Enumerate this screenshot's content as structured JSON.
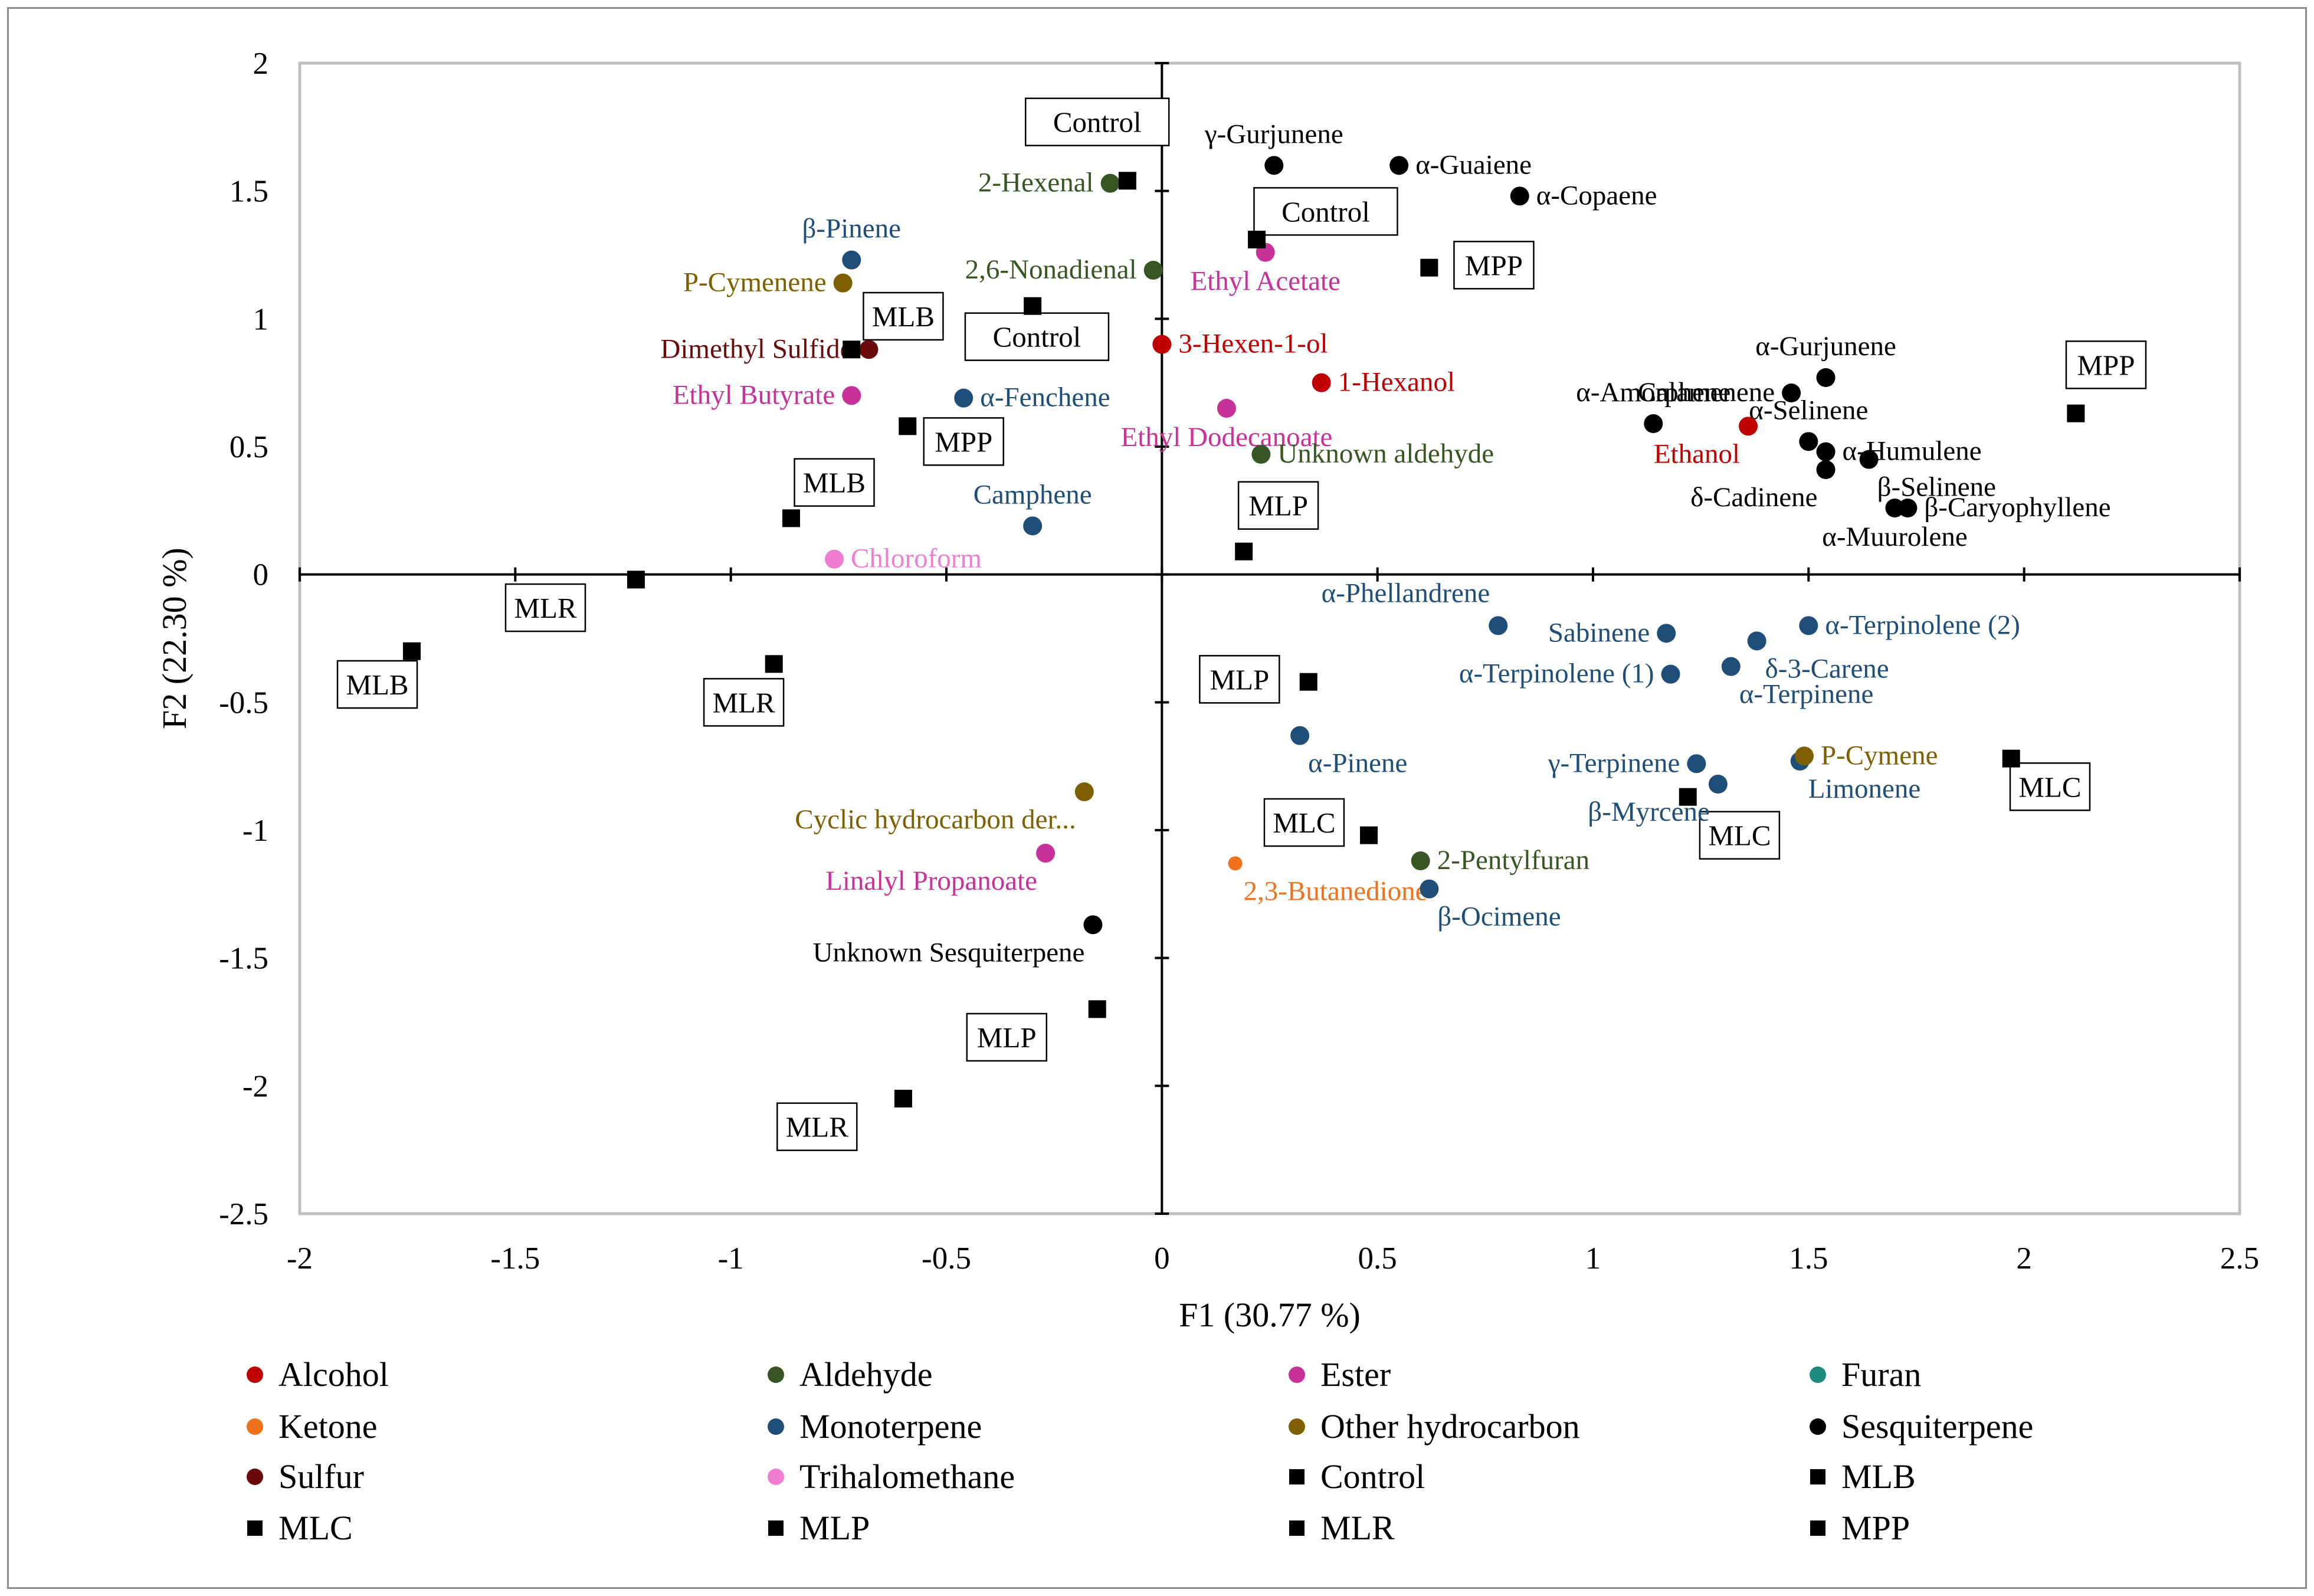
{
  "chart_data": {
    "type": "scatter",
    "xlabel": "F1 (30.77 %)",
    "ylabel": "F2 (22.30 %)",
    "xlim": [
      -2,
      2.5
    ],
    "ylim": [
      -2.5,
      2
    ],
    "xticks": [
      -2,
      -1.5,
      -1,
      -0.5,
      0,
      0.5,
      1,
      1.5,
      2,
      2.5
    ],
    "yticks": [
      -2.5,
      -2,
      -1.5,
      -1,
      -0.5,
      0,
      0.5,
      1,
      1.5,
      2
    ],
    "xtick_labels": [
      "-2",
      "-1.5",
      "-1",
      "-0.5",
      "0",
      "0.5",
      "1",
      "1.5",
      "2",
      "2.5"
    ],
    "ytick_labels": [
      "-2.5",
      "-2",
      "-1.5",
      "-1",
      "-0.5",
      "0",
      "0.5",
      "1",
      "1.5",
      "2"
    ],
    "grid": false,
    "legend_position": "bottom",
    "categories": [
      {
        "name": "Alcohol",
        "color": "#c00000",
        "marker": "circle"
      },
      {
        "name": "Aldehyde",
        "color": "#375623",
        "marker": "circle"
      },
      {
        "name": "Ester",
        "color": "#c8309a",
        "marker": "circle"
      },
      {
        "name": "Furan",
        "color": "#1b8a80",
        "marker": "circle"
      },
      {
        "name": "Ketone",
        "color": "#f2711c",
        "marker": "circle"
      },
      {
        "name": "Monoterpene",
        "color": "#1f4e79",
        "marker": "circle"
      },
      {
        "name": "Other hydrocarbon",
        "color": "#7f6000",
        "marker": "circle"
      },
      {
        "name": "Sesquiterpene",
        "color": "#000000",
        "marker": "circle"
      },
      {
        "name": "Sulfur",
        "color": "#6b0a0a",
        "marker": "circle"
      },
      {
        "name": "Trihalomethane",
        "color": "#f07ed0",
        "marker": "circle"
      },
      {
        "name": "Control",
        "color": "#000000",
        "marker": "square"
      },
      {
        "name": "MLB",
        "color": "#000000",
        "marker": "square"
      },
      {
        "name": "MLC",
        "color": "#000000",
        "marker": "square"
      },
      {
        "name": "MLP",
        "color": "#000000",
        "marker": "square"
      },
      {
        "name": "MLR",
        "color": "#000000",
        "marker": "square"
      },
      {
        "name": "MPP",
        "color": "#000000",
        "marker": "square"
      }
    ],
    "points": [
      {
        "label": "γ-Gurjunene",
        "cat": "Sesquiterpene",
        "x": 0.26,
        "y": 1.6,
        "lp": "a"
      },
      {
        "label": "α-Guaiene",
        "cat": "Sesquiterpene",
        "x": 0.55,
        "y": 1.6,
        "lp": "r"
      },
      {
        "label": "α-Copaene",
        "cat": "Sesquiterpene",
        "x": 0.83,
        "y": 1.48,
        "lp": "r"
      },
      {
        "label": "2-Hexenal",
        "cat": "Aldehyde",
        "x": -0.12,
        "y": 1.53,
        "lp": "l"
      },
      {
        "label": "β-Pinene",
        "cat": "Monoterpene",
        "x": -0.72,
        "y": 1.23,
        "lp": "a"
      },
      {
        "label": "P-Cymenene",
        "cat": "Other hydrocarbon",
        "x": -0.74,
        "y": 1.14,
        "lp": "l"
      },
      {
        "label": "2,6-Nonadienal",
        "cat": "Aldehyde",
        "x": -0.02,
        "y": 1.19,
        "lp": "l"
      },
      {
        "label": "Ethyl Acetate",
        "cat": "Ester",
        "x": 0.24,
        "y": 1.26,
        "lp": "b"
      },
      {
        "label": "Dimethyl Sulfide",
        "cat": "Sulfur",
        "x": -0.68,
        "y": 0.88,
        "lp": "l"
      },
      {
        "label": "3-Hexen-1-ol",
        "cat": "Alcohol",
        "x": 0.0,
        "y": 0.9,
        "lp": "r"
      },
      {
        "label": "1-Hexanol",
        "cat": "Alcohol",
        "x": 0.37,
        "y": 0.75,
        "lp": "r"
      },
      {
        "label": "Ethyl Butyrate",
        "cat": "Ester",
        "x": -0.72,
        "y": 0.7,
        "lp": "l"
      },
      {
        "label": "α-Fenchene",
        "cat": "Monoterpene",
        "x": -0.46,
        "y": 0.69,
        "lp": "r"
      },
      {
        "label": "Ethyl Dodecanoate",
        "cat": "Ester",
        "x": 0.15,
        "y": 0.65,
        "lp": "b"
      },
      {
        "label": "Unknown aldehyde",
        "cat": "Aldehyde",
        "x": 0.23,
        "y": 0.47,
        "lp": "r"
      },
      {
        "label": "Camphene",
        "cat": "Monoterpene",
        "x": -0.3,
        "y": 0.19,
        "lp": "a"
      },
      {
        "label": "Chloroform",
        "cat": "Trihalomethane",
        "x": -0.76,
        "y": 0.06,
        "lp": "r"
      },
      {
        "label": "α-Amorphene",
        "cat": "Sesquiterpene",
        "x": 1.14,
        "y": 0.59,
        "lp": "a"
      },
      {
        "label": "Calamenene",
        "cat": "Sesquiterpene",
        "x": 1.46,
        "y": 0.71,
        "lp": "l"
      },
      {
        "label": "α-Gurjunene",
        "cat": "Sesquiterpene",
        "x": 1.54,
        "y": 0.77,
        "lp": "a"
      },
      {
        "label": "α-Selinene",
        "cat": "Sesquiterpene",
        "x": 1.5,
        "y": 0.52,
        "lp": "a"
      },
      {
        "label": "α-Humulene",
        "cat": "Sesquiterpene",
        "x": 1.54,
        "y": 0.48,
        "lp": "r"
      },
      {
        "label": "β-Selinene",
        "cat": "Sesquiterpene",
        "x": 1.64,
        "y": 0.45,
        "lp": "br"
      },
      {
        "label": "δ-Cadinene",
        "cat": "Sesquiterpene",
        "x": 1.54,
        "y": 0.41,
        "lp": "bl"
      },
      {
        "label": "β-Caryophyllene",
        "cat": "Sesquiterpene",
        "x": 1.73,
        "y": 0.26,
        "lp": "r"
      },
      {
        "label": "α-Muurolene",
        "cat": "Sesquiterpene",
        "x": 1.7,
        "y": 0.26,
        "lp": "b"
      },
      {
        "label": "Ethanol",
        "cat": "Alcohol",
        "x": 1.36,
        "y": 0.58,
        "lp": "bl"
      },
      {
        "label": "α-Phellandrene",
        "cat": "Monoterpene",
        "x": 0.78,
        "y": -0.2,
        "lp": "al"
      },
      {
        "label": "Sabinene",
        "cat": "Monoterpene",
        "x": 1.17,
        "y": -0.23,
        "lp": "l"
      },
      {
        "label": "δ-3-Carene",
        "cat": "Monoterpene",
        "x": 1.38,
        "y": -0.26,
        "lp": "br"
      },
      {
        "label": "α-Terpinolene (2)",
        "cat": "Monoterpene",
        "x": 1.5,
        "y": -0.2,
        "lp": "r"
      },
      {
        "label": "α-Terpinolene (1)",
        "cat": "Monoterpene",
        "x": 1.18,
        "y": -0.39,
        "lp": "l"
      },
      {
        "label": "α-Terpinene",
        "cat": "Monoterpene",
        "x": 1.32,
        "y": -0.36,
        "lp": "br"
      },
      {
        "label": "α-Pinene",
        "cat": "Monoterpene",
        "x": 0.32,
        "y": -0.63,
        "lp": "br"
      },
      {
        "label": "γ-Terpinene",
        "cat": "Monoterpene",
        "x": 1.24,
        "y": -0.74,
        "lp": "l"
      },
      {
        "label": "β-Myrcene",
        "cat": "Monoterpene",
        "x": 1.29,
        "y": -0.82,
        "lp": "bl"
      },
      {
        "label": "Limonene",
        "cat": "Monoterpene",
        "x": 1.48,
        "y": -0.73,
        "lp": "br"
      },
      {
        "label": "P-Cymene",
        "cat": "Other hydrocarbon",
        "x": 1.49,
        "y": -0.71,
        "lp": "r"
      },
      {
        "label": "Cyclic hydrocarbon der...",
        "cat": "Other hydrocarbon",
        "x": -0.18,
        "y": -0.85,
        "lp": "bl"
      },
      {
        "label": "Linalyl Propanoate",
        "cat": "Ester",
        "x": -0.27,
        "y": -1.09,
        "lp": "bl"
      },
      {
        "label": "2,3-Butanedione",
        "cat": "Ketone",
        "x": 0.17,
        "y": -1.13,
        "lp": "br"
      },
      {
        "label": "2-Pentylfuran",
        "cat": "Aldehyde",
        "x": 0.6,
        "y": -1.12,
        "lp": "r"
      },
      {
        "label": "β-Ocimene",
        "cat": "Monoterpene",
        "x": 0.62,
        "y": -1.23,
        "lp": "br"
      },
      {
        "label": "Unknown Sesquiterpene",
        "cat": "Sesquiterpene",
        "x": -0.16,
        "y": -1.37,
        "lp": "bl"
      }
    ],
    "samples": [
      {
        "label": "Control",
        "x": -0.08,
        "y": 1.54,
        "bx": -0.15,
        "by": 1.77
      },
      {
        "label": "Control",
        "x": 0.22,
        "y": 1.31,
        "bx": 0.38,
        "by": 1.42
      },
      {
        "label": "Control",
        "x": -0.3,
        "y": 1.05,
        "bx": -0.29,
        "by": 0.93
      },
      {
        "label": "MPP",
        "x": 0.62,
        "y": 1.2,
        "bx": 0.77,
        "by": 1.21
      },
      {
        "label": "MPP",
        "x": 2.12,
        "y": 0.63,
        "bx": 2.19,
        "by": 0.82
      },
      {
        "label": "MPP",
        "x": -0.59,
        "y": 0.58,
        "bx": -0.46,
        "by": 0.52
      },
      {
        "label": "MLB",
        "x": -0.72,
        "y": 0.88,
        "bx": -0.6,
        "by": 1.01
      },
      {
        "label": "MLB",
        "x": -0.86,
        "y": 0.22,
        "bx": -0.76,
        "by": 0.36
      },
      {
        "label": "MLB",
        "x": -1.74,
        "y": -0.3,
        "bx": -1.82,
        "by": -0.43
      },
      {
        "label": "MLR",
        "x": -1.22,
        "y": -0.02,
        "bx": -1.43,
        "by": -0.13
      },
      {
        "label": "MLR",
        "x": -0.9,
        "y": -0.35,
        "bx": -0.97,
        "by": -0.5
      },
      {
        "label": "MLR",
        "x": -0.6,
        "y": -2.05,
        "bx": -0.8,
        "by": -2.16
      },
      {
        "label": "MLP",
        "x": 0.19,
        "y": 0.09,
        "bx": 0.27,
        "by": 0.27
      },
      {
        "label": "MLP",
        "x": 0.34,
        "y": -0.42,
        "bx": 0.18,
        "by": -0.41
      },
      {
        "label": "MLP",
        "x": -0.15,
        "y": -1.7,
        "bx": -0.36,
        "by": -1.81
      },
      {
        "label": "MLC",
        "x": 0.48,
        "y": -1.02,
        "bx": 0.33,
        "by": -0.97
      },
      {
        "label": "MLC",
        "x": 1.97,
        "y": -0.72,
        "bx": 2.06,
        "by": -0.83
      },
      {
        "label": "MLC",
        "x": 1.22,
        "y": -0.87,
        "bx": 1.34,
        "by": -1.02
      }
    ]
  }
}
